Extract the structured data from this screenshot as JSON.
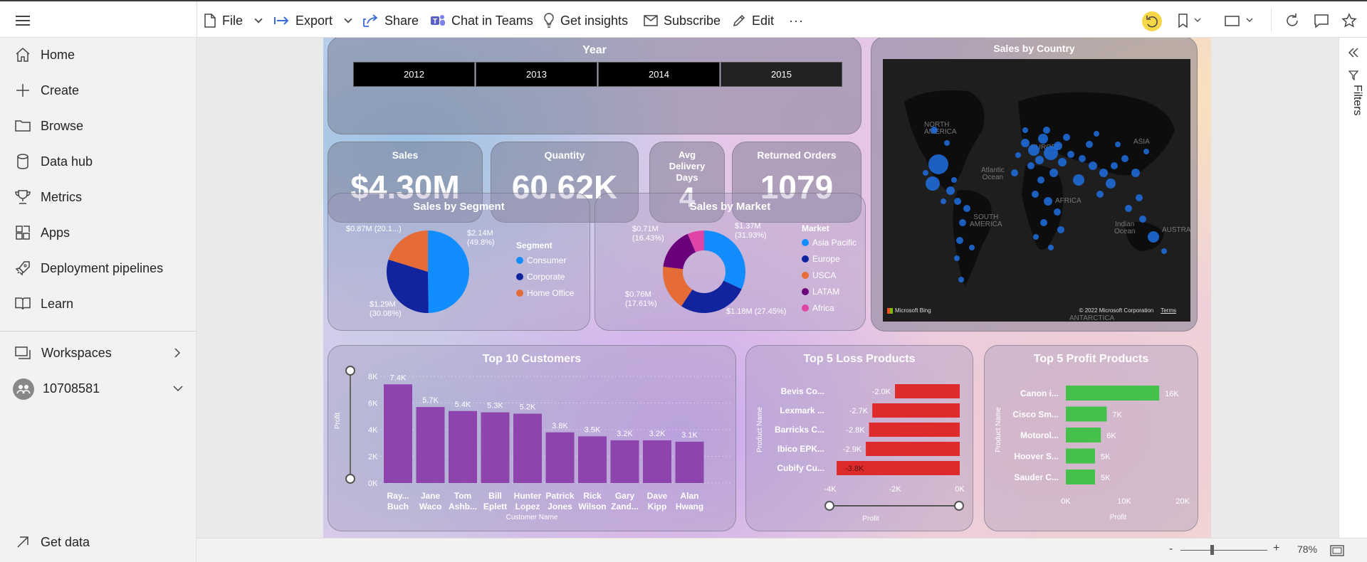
{
  "toolbar": {
    "file": "File",
    "export": "Export",
    "share": "Share",
    "chat_teams": "Chat in Teams",
    "get_insights": "Get insights",
    "subscribe": "Subscribe",
    "edit": "Edit",
    "more": "···"
  },
  "sidebar": {
    "items": [
      {
        "label": "Home",
        "icon": "home-icon"
      },
      {
        "label": "Create",
        "icon": "plus-icon"
      },
      {
        "label": "Browse",
        "icon": "folder-icon"
      },
      {
        "label": "Data hub",
        "icon": "database-icon"
      },
      {
        "label": "Metrics",
        "icon": "trophy-icon"
      },
      {
        "label": "Apps",
        "icon": "apps-icon"
      },
      {
        "label": "Deployment pipelines",
        "icon": "rocket-icon"
      },
      {
        "label": "Learn",
        "icon": "book-icon"
      }
    ],
    "workspaces": "Workspaces",
    "workspace_name": "10708581",
    "get_data": "Get data"
  },
  "report": {
    "year": {
      "title": "Year",
      "options": [
        "2012",
        "2013",
        "2014",
        "2015"
      ],
      "selected": "2015"
    },
    "kpis": {
      "sales_label": "Sales",
      "sales_value": "$4.30M",
      "quantity_label": "Quantity",
      "quantity_value": "60.62K",
      "delivery_label_1": "Avg",
      "delivery_label_2": "Delivery",
      "delivery_label_3": "Days",
      "delivery_value": "4",
      "returned_label": "Returned Orders",
      "returned_value": "1079"
    },
    "map": {
      "title": "Sales by Country",
      "labels": {
        "north_america": "NORTH\nAMERICA",
        "atlantic": "Atlantic\nOcean",
        "south_america": "SOUTH\nAMERICA",
        "europe": "EUROPE",
        "africa": "AFRICA",
        "asia": "ASIA",
        "indian": "Indian\nOcean",
        "australia": "AUSTRAL...",
        "antarctica": "ANTARCTICA"
      },
      "bing": "Microsoft Bing",
      "copyright": "© 2022 Microsoft Corporation",
      "terms": "Terms"
    }
  },
  "footer": {
    "zoom": "78%",
    "minus": "-",
    "plus": "+"
  },
  "right_panel": {
    "filters": "Filters"
  },
  "colors": {
    "segment": [
      "#118dff",
      "#12239e",
      "#e66c37"
    ],
    "market": [
      "#118dff",
      "#12239e",
      "#e66c37",
      "#6b007b",
      "#e044a7"
    ],
    "bar_purple": "#8e44ad",
    "loss_red": "#dd2a2a",
    "profit_green": "#43c14a"
  },
  "chart_data": [
    {
      "type": "pie",
      "title": "Sales by Segment",
      "legend_title": "Segment",
      "categories": [
        "Consumer",
        "Corporate",
        "Home Office"
      ],
      "values": [
        2.14,
        1.29,
        0.87
      ],
      "labels": [
        "$2.14M\n(49.8%)",
        "$1.29M\n(30.08%)",
        "$0.87M (20.1...)"
      ]
    },
    {
      "type": "pie",
      "subtype": "donut",
      "title": "Sales by Market",
      "legend_title": "Market",
      "categories": [
        "Asia Pacific",
        "Europe",
        "USCA",
        "LATAM",
        "Africa"
      ],
      "values": [
        1.37,
        1.18,
        0.76,
        0.71,
        0.28
      ],
      "labels": [
        "$1.37M\n(31.93%)",
        "$1.18M (27.45%)",
        "$0.76M\n(17.61%)",
        "$0.71M\n(16.43%)",
        ""
      ]
    },
    {
      "type": "bar",
      "title": "Top 10 Customers",
      "xlabel": "Customer Name",
      "ylabel": "Profit",
      "categories": [
        "Ray...\nBuch",
        "Jane\nWaco",
        "Tom\nAshb...",
        "Bill\nEplett",
        "Hunter\nLopez",
        "Patrick\nJones",
        "Rick\nWilson",
        "Gary\nZand...",
        "Dave\nKipp",
        "Alan\nHwang"
      ],
      "values": [
        7.4,
        5.7,
        5.4,
        5.3,
        5.2,
        3.8,
        3.5,
        3.2,
        3.2,
        3.1
      ],
      "value_labels": [
        "7.4K",
        "5.7K",
        "5.4K",
        "5.3K",
        "5.2K",
        "3.8K",
        "3.5K",
        "3.2K",
        "3.2K",
        "3.1K"
      ],
      "yticks": [
        "8K",
        "6K",
        "4K",
        "2K",
        "0K"
      ],
      "ylim": [
        0,
        8
      ]
    },
    {
      "type": "bar",
      "orientation": "horizontal",
      "title": "Top 5 Loss Products",
      "xlabel": "Profit",
      "ylabel": "Product Name",
      "categories": [
        "Bevis Co...",
        "Lexmark ...",
        "Barricks C...",
        "Ibico EPK...",
        "Cubify Cu..."
      ],
      "values": [
        -2.0,
        -2.7,
        -2.8,
        -2.9,
        -3.8
      ],
      "value_labels": [
        "-2.0K",
        "-2.7K",
        "-2.8K",
        "-2.9K",
        "-3.8K"
      ],
      "xticks": [
        "-4K",
        "-2K",
        "0K"
      ],
      "xlim": [
        -4,
        0
      ]
    },
    {
      "type": "bar",
      "orientation": "horizontal",
      "title": "Top 5 Profit Products",
      "xlabel": "Profit",
      "ylabel": "Product Name",
      "categories": [
        "Canon i...",
        "Cisco Sm...",
        "Motorol...",
        "Hoover S...",
        "Sauder C..."
      ],
      "values": [
        16,
        7,
        6,
        5,
        5
      ],
      "value_labels": [
        "16K",
        "7K",
        "6K",
        "5K",
        "5K"
      ],
      "xticks": [
        "0K",
        "10K",
        "20K"
      ],
      "xlim": [
        0,
        20
      ]
    }
  ]
}
